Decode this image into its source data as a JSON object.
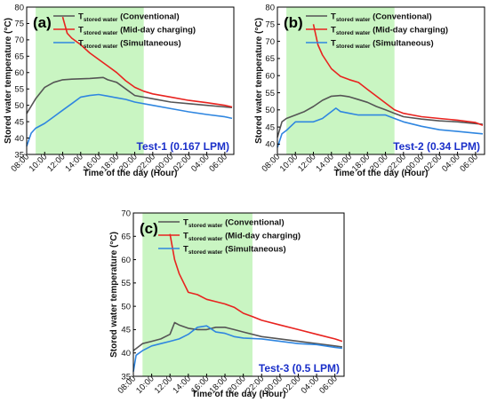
{
  "colors": {
    "conventional": "#555555",
    "midday": "#e8231f",
    "simultaneous": "#2f86e0",
    "shade": "#c9f5c2",
    "test_label": "#1a2fc9"
  },
  "chart_data": [
    {
      "type": "line",
      "panel_label": "(a)",
      "test_label": "Test-1 (0.167 LPM)",
      "xlabel": "Time of the day (Hour)",
      "ylabel": "Stored water temperature (°C)",
      "x_ticks": [
        "08:00",
        "10:00",
        "12:00",
        "14:00",
        "16:00",
        "18:00",
        "20:00",
        "22:00",
        "00:00",
        "02:00",
        "04:00",
        "06:00"
      ],
      "x_range_hours": [
        8,
        31
      ],
      "ylim": [
        35,
        80
      ],
      "y_ticks": [
        35,
        40,
        45,
        50,
        55,
        60,
        65,
        70,
        75,
        80
      ],
      "shaded_x_range_hours": [
        9,
        21
      ],
      "legend_position": "top-center",
      "series": [
        {
          "name": "Conventional",
          "legend_main": "T",
          "legend_sub": "stored water",
          "legend_rest": " (Conventional)",
          "color_key": "conventional",
          "x": [
            8,
            9,
            10,
            11,
            12,
            13,
            14,
            15,
            16,
            16.5,
            17,
            18,
            19,
            20,
            22,
            24,
            26,
            28,
            30,
            30.8
          ],
          "y": [
            47.5,
            52,
            55.5,
            57,
            57.8,
            58,
            58.1,
            58.2,
            58.4,
            58.5,
            57.8,
            57,
            55,
            53,
            52,
            51,
            50.5,
            50,
            49.5,
            49.3
          ]
        },
        {
          "name": "Mid-day charging",
          "legend_main": "T",
          "legend_sub": "stored water",
          "legend_rest": " (Mid-day charging)",
          "color_key": "midday",
          "x": [
            12,
            12.5,
            13,
            14,
            15,
            16,
            17,
            18,
            19,
            20,
            21,
            22,
            24,
            26,
            28,
            30,
            30.8
          ],
          "y": [
            77,
            72,
            70.5,
            68.5,
            66,
            64,
            62,
            60,
            57.5,
            55.5,
            54.3,
            53.5,
            52.5,
            51.5,
            50.8,
            50,
            49.5
          ]
        },
        {
          "name": "Simultaneous",
          "legend_main": "T",
          "legend_sub": "stored water",
          "legend_rest": " (Simultaneous)",
          "color_key": "simultaneous",
          "x": [
            8,
            8.5,
            9,
            10,
            11,
            12,
            13,
            14,
            15,
            16,
            17,
            18,
            19,
            20,
            22,
            24,
            26,
            28,
            30,
            30.8
          ],
          "y": [
            37.5,
            41.5,
            43,
            44.5,
            46.5,
            48.5,
            50.5,
            52.5,
            53,
            53.3,
            52.8,
            52.3,
            51.8,
            51,
            50,
            49,
            48,
            47.2,
            46.5,
            46
          ]
        }
      ]
    },
    {
      "type": "line",
      "panel_label": "(b)",
      "test_label": "Test-2 (0.34 LPM)",
      "xlabel": "Time of the day (Hour)",
      "ylabel": "Stored water temperature (°C)",
      "x_ticks": [
        "08:00",
        "10:00",
        "12:00",
        "14:00",
        "16:00",
        "18:00",
        "20:00",
        "22:00",
        "00:00",
        "02:00",
        "04:00",
        "06:00"
      ],
      "x_range_hours": [
        8,
        31
      ],
      "ylim": [
        37,
        80
      ],
      "y_ticks": [
        40,
        45,
        50,
        55,
        60,
        65,
        70,
        75,
        80
      ],
      "shaded_x_range_hours": [
        9,
        21
      ],
      "legend_position": "top-center",
      "series": [
        {
          "name": "Conventional",
          "legend_main": "T",
          "legend_sub": "stored water",
          "legend_rest": " (Conventional)",
          "color_key": "conventional",
          "x": [
            8,
            8.5,
            9,
            10,
            11,
            12,
            13,
            14,
            15,
            16,
            17,
            18,
            19,
            20,
            21,
            22,
            24,
            26,
            28,
            30,
            30.8
          ],
          "y": [
            42,
            46.5,
            47.5,
            48.5,
            49.5,
            51,
            52.8,
            54,
            54.2,
            53.8,
            53,
            52.2,
            51,
            50,
            49,
            48,
            47.3,
            46.8,
            46.5,
            46,
            45.8
          ]
        },
        {
          "name": "Mid-day charging",
          "legend_main": "T",
          "legend_sub": "stored water",
          "legend_rest": " (Mid-day charging)",
          "color_key": "midday",
          "x": [
            12,
            12.5,
            13,
            14,
            15,
            16,
            17,
            18,
            19,
            20,
            21,
            22,
            24,
            26,
            28,
            30,
            30.8
          ],
          "y": [
            75,
            69,
            66,
            62,
            59.8,
            58.8,
            58,
            56,
            54,
            52,
            50,
            49,
            48,
            47.5,
            47,
            46.3,
            45.5
          ]
        },
        {
          "name": "Simultaneous",
          "legend_main": "T",
          "legend_sub": "stored water",
          "legend_rest": " (Simultaneous)",
          "color_key": "simultaneous",
          "x": [
            8,
            8.5,
            9,
            10,
            11,
            12,
            13,
            14,
            14.5,
            15,
            16,
            17,
            18,
            19,
            20,
            21,
            22,
            24,
            26,
            28,
            30,
            30.8
          ],
          "y": [
            39,
            43,
            44,
            46.5,
            46.5,
            46.5,
            47.5,
            49.5,
            50.5,
            49.5,
            49,
            48.5,
            48.5,
            48.5,
            48.5,
            47.5,
            46.5,
            45.2,
            44.2,
            43.7,
            43.2,
            43
          ]
        }
      ]
    },
    {
      "type": "line",
      "panel_label": "(c)",
      "test_label": "Test-3 (0.5 LPM)",
      "xlabel": "Time of the day (Hour)",
      "ylabel": "Stored water temperature (°C)",
      "x_ticks": [
        "08:00",
        "10:00",
        "12:00",
        "14:00",
        "16:00",
        "18:00",
        "20:00",
        "22:00",
        "00:00",
        "02:00",
        "04:00",
        "06:00"
      ],
      "x_range_hours": [
        8,
        31
      ],
      "ylim": [
        35,
        70
      ],
      "y_ticks": [
        35,
        40,
        45,
        50,
        55,
        60,
        65,
        70
      ],
      "shaded_x_range_hours": [
        9,
        21
      ],
      "legend_position": "top-center",
      "series": [
        {
          "name": "Conventional",
          "legend_main": "T",
          "legend_sub": "stored water",
          "legend_rest": " (Conventional)",
          "color_key": "conventional",
          "x": [
            8,
            9,
            10,
            11,
            12,
            12.5,
            13,
            14,
            15,
            16,
            17,
            18,
            19,
            20,
            22,
            24,
            26,
            28,
            30,
            30.8
          ],
          "y": [
            40.5,
            42,
            42.5,
            43,
            44,
            46.5,
            46,
            45.3,
            45,
            45,
            45.5,
            45.5,
            45,
            44.5,
            43.5,
            43,
            42.5,
            42,
            41.5,
            41.3
          ]
        },
        {
          "name": "Mid-day charging",
          "legend_main": "T",
          "legend_sub": "stored water",
          "legend_rest": " (Mid-day charging)",
          "color_key": "midday",
          "x": [
            12,
            12.5,
            13,
            14,
            15,
            16,
            17,
            18,
            19,
            20,
            21,
            22,
            24,
            26,
            28,
            30,
            30.8
          ],
          "y": [
            65.5,
            60,
            57,
            53,
            52.5,
            51.5,
            51,
            50.5,
            49.8,
            48.5,
            47.8,
            47,
            46,
            45,
            44,
            43,
            42.5
          ]
        },
        {
          "name": "Simultaneous",
          "legend_main": "T",
          "legend_sub": "stored water",
          "legend_rest": " (Simultaneous)",
          "color_key": "simultaneous",
          "x": [
            8,
            8.3,
            9,
            10,
            11,
            12,
            13,
            14,
            15,
            16,
            17,
            18,
            19,
            20,
            22,
            24,
            26,
            28,
            30,
            30.8
          ],
          "y": [
            36,
            39.5,
            40.5,
            41.5,
            42,
            42.5,
            43,
            44,
            45.5,
            45.8,
            44.5,
            44.2,
            43.5,
            43.2,
            43,
            42.5,
            42,
            41.8,
            41.2,
            41
          ]
        }
      ]
    }
  ]
}
